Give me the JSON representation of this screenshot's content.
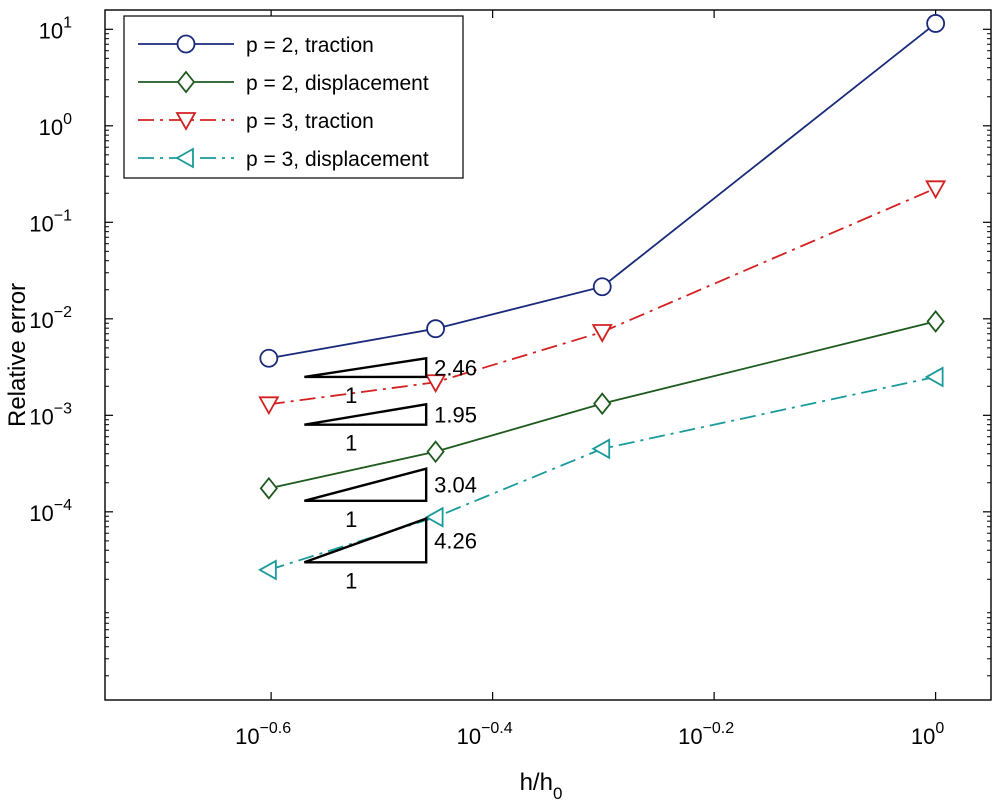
{
  "chart_data": {
    "type": "line",
    "xscale": "log",
    "yscale": "log",
    "xlabel": "h/h",
    "xlabel_sub": "0",
    "ylabel": "Relative error",
    "xlim": [
      -0.75,
      0.05
    ],
    "ylim": [
      -5.95,
      1.2
    ],
    "x_ticks": [
      {
        "exp": -0.6,
        "base": "10",
        "label": "−0.6"
      },
      {
        "exp": -0.4,
        "base": "10",
        "label": "−0.4"
      },
      {
        "exp": -0.2,
        "base": "10",
        "label": "−0.2"
      },
      {
        "exp": 0,
        "base": "10",
        "label": "0"
      }
    ],
    "y_ticks": [
      {
        "exp": 1,
        "base": "10",
        "label": "1"
      },
      {
        "exp": 0,
        "base": "10",
        "label": "0"
      },
      {
        "exp": -1,
        "base": "10",
        "label": "−1"
      },
      {
        "exp": -2,
        "base": "10",
        "label": "−2"
      },
      {
        "exp": -3,
        "base": "10",
        "label": "−3"
      },
      {
        "exp": -4,
        "base": "10",
        "label": "−4"
      }
    ],
    "x": [
      0.25,
      0.3536,
      0.5,
      1.0
    ],
    "series": [
      {
        "name": "p = 2, traction",
        "color": "#1a2a7a",
        "marker": "circle",
        "dash": "solid",
        "values": [
          0.0039,
          0.0079,
          0.0215,
          11.5
        ]
      },
      {
        "name": "p = 2, displacement",
        "color": "#1e5a1e",
        "marker": "diamond",
        "dash": "solid",
        "values": [
          0.000175,
          0.00042,
          0.00132,
          0.0094
        ]
      },
      {
        "name": "p = 3, traction",
        "color": "#d42020",
        "marker": "triangle-down",
        "dash": "dashdot",
        "values": [
          0.0013,
          0.0022,
          0.0073,
          0.225
        ]
      },
      {
        "name": "p = 3, displacement",
        "color": "#1a9a9a",
        "marker": "triangle-left",
        "dash": "dashdot",
        "values": [
          2.5e-05,
          8.8e-05,
          0.00045,
          0.0025
        ]
      }
    ],
    "slope_triangles": [
      {
        "rate": "2.46",
        "run_label": "1",
        "x_start": -0.57,
        "x_end": -0.46,
        "y_bottom": 0.0025,
        "y_top": 0.0039
      },
      {
        "rate": "1.95",
        "run_label": "1",
        "x_start": -0.57,
        "x_end": -0.46,
        "y_bottom": 0.0008,
        "y_top": 0.0013
      },
      {
        "rate": "3.04",
        "run_label": "1",
        "x_start": -0.57,
        "x_end": -0.46,
        "y_bottom": 0.00013,
        "y_top": 0.00028
      },
      {
        "rate": "4.26",
        "run_label": "1",
        "x_start": -0.57,
        "x_end": -0.46,
        "y_bottom": 3e-05,
        "y_top": 8.5e-05
      }
    ],
    "legend_position": "top-left"
  }
}
